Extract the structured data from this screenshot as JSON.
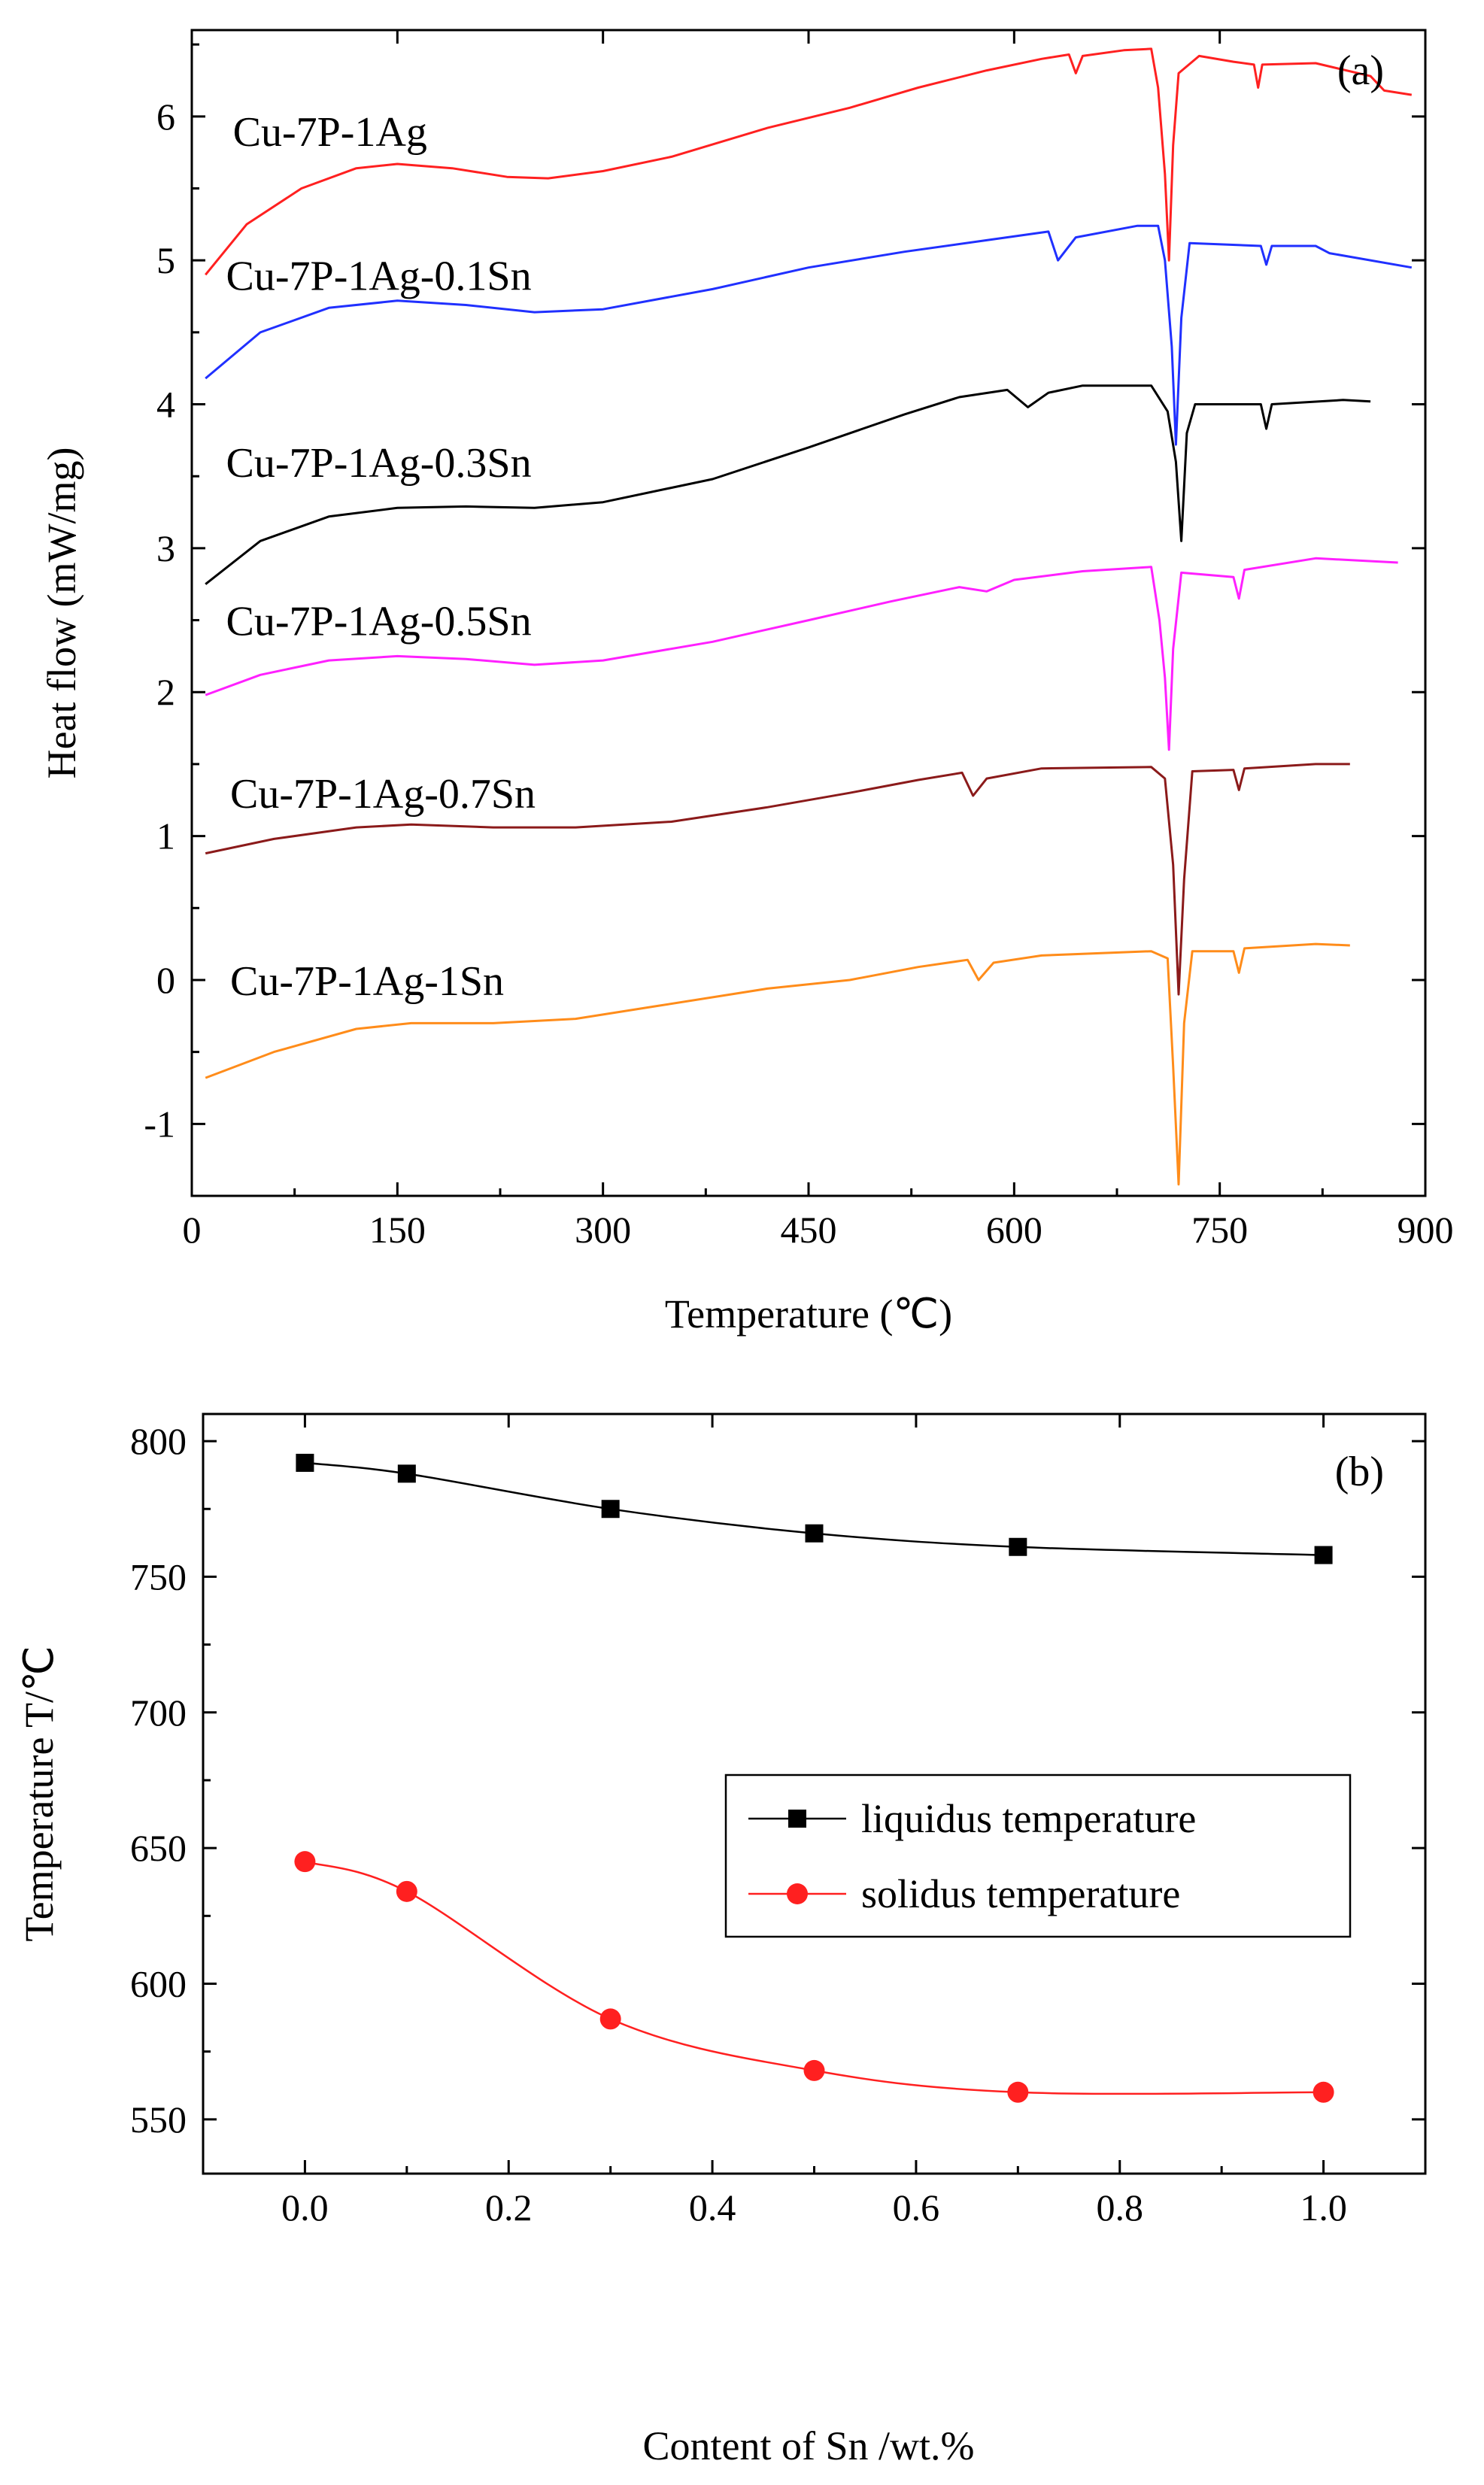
{
  "chart_data": [
    {
      "type": "line",
      "panel_label": "(a)",
      "xlabel": "Temperature (℃)",
      "ylabel": "Heat flow (mW/mg)",
      "xlim": [
        0,
        900
      ],
      "ylim": [
        -1.5,
        6.6
      ],
      "xticks": [
        0,
        150,
        300,
        450,
        600,
        750,
        900
      ],
      "yticks": [
        -1,
        0,
        1,
        2,
        3,
        4,
        5,
        6
      ],
      "legend": "none (inline curve labels)",
      "grid": false,
      "series": [
        {
          "name": "Cu-7P-1Ag",
          "color": "#ff2020",
          "label_anchor": [
            30,
            5.9
          ],
          "points": [
            [
              10,
              4.9
            ],
            [
              40,
              5.25
            ],
            [
              80,
              5.5
            ],
            [
              120,
              5.64
            ],
            [
              150,
              5.67
            ],
            [
              190,
              5.64
            ],
            [
              230,
              5.58
            ],
            [
              260,
              5.57
            ],
            [
              300,
              5.62
            ],
            [
              350,
              5.72
            ],
            [
              420,
              5.92
            ],
            [
              480,
              6.06
            ],
            [
              530,
              6.2
            ],
            [
              580,
              6.32
            ],
            [
              620,
              6.4
            ],
            [
              640,
              6.43
            ],
            [
              645,
              6.3
            ],
            [
              650,
              6.42
            ],
            [
              680,
              6.46
            ],
            [
              700,
              6.47
            ],
            [
              705,
              6.2
            ],
            [
              710,
              5.6
            ],
            [
              713,
              5.0
            ],
            [
              716,
              5.8
            ],
            [
              720,
              6.3
            ],
            [
              735,
              6.42
            ],
            [
              760,
              6.38
            ],
            [
              775,
              6.36
            ],
            [
              778,
              6.2
            ],
            [
              781,
              6.36
            ],
            [
              820,
              6.37
            ],
            [
              860,
              6.28
            ],
            [
              870,
              6.18
            ],
            [
              890,
              6.15
            ]
          ]
        },
        {
          "name": "Cu-7P-1Ag-0.1Sn",
          "color": "#2030ff",
          "label_anchor": [
            25,
            4.9
          ],
          "points": [
            [
              10,
              4.18
            ],
            [
              50,
              4.5
            ],
            [
              100,
              4.67
            ],
            [
              150,
              4.72
            ],
            [
              200,
              4.69
            ],
            [
              250,
              4.64
            ],
            [
              300,
              4.66
            ],
            [
              380,
              4.8
            ],
            [
              450,
              4.95
            ],
            [
              520,
              5.06
            ],
            [
              580,
              5.14
            ],
            [
              625,
              5.2
            ],
            [
              632,
              5.0
            ],
            [
              645,
              5.16
            ],
            [
              690,
              5.24
            ],
            [
              705,
              5.24
            ],
            [
              710,
              5.0
            ],
            [
              715,
              4.4
            ],
            [
              718,
              3.72
            ],
            [
              722,
              4.6
            ],
            [
              728,
              5.12
            ],
            [
              780,
              5.1
            ],
            [
              784,
              4.97
            ],
            [
              788,
              5.1
            ],
            [
              820,
              5.1
            ],
            [
              830,
              5.05
            ],
            [
              890,
              4.95
            ]
          ]
        },
        {
          "name": "Cu-7P-1Ag-0.3Sn",
          "color": "#000000",
          "label_anchor": [
            25,
            3.6
          ],
          "points": [
            [
              10,
              2.75
            ],
            [
              50,
              3.05
            ],
            [
              100,
              3.22
            ],
            [
              150,
              3.28
            ],
            [
              200,
              3.29
            ],
            [
              250,
              3.28
            ],
            [
              300,
              3.32
            ],
            [
              380,
              3.48
            ],
            [
              450,
              3.7
            ],
            [
              520,
              3.93
            ],
            [
              560,
              4.05
            ],
            [
              595,
              4.1
            ],
            [
              610,
              3.98
            ],
            [
              625,
              4.08
            ],
            [
              650,
              4.13
            ],
            [
              700,
              4.13
            ],
            [
              712,
              3.95
            ],
            [
              718,
              3.6
            ],
            [
              722,
              3.05
            ],
            [
              726,
              3.8
            ],
            [
              732,
              4.0
            ],
            [
              780,
              4.0
            ],
            [
              784,
              3.83
            ],
            [
              788,
              4.0
            ],
            [
              840,
              4.03
            ],
            [
              860,
              4.02
            ]
          ]
        },
        {
          "name": "Cu-7P-1Ag-0.5Sn",
          "color": "#ff20ff",
          "label_anchor": [
            25,
            2.5
          ],
          "points": [
            [
              10,
              1.98
            ],
            [
              50,
              2.12
            ],
            [
              100,
              2.22
            ],
            [
              150,
              2.25
            ],
            [
              200,
              2.23
            ],
            [
              250,
              2.19
            ],
            [
              300,
              2.22
            ],
            [
              380,
              2.35
            ],
            [
              450,
              2.5
            ],
            [
              510,
              2.63
            ],
            [
              560,
              2.73
            ],
            [
              580,
              2.7
            ],
            [
              600,
              2.78
            ],
            [
              650,
              2.84
            ],
            [
              700,
              2.87
            ],
            [
              706,
              2.5
            ],
            [
              710,
              2.1
            ],
            [
              713,
              1.6
            ],
            [
              716,
              2.3
            ],
            [
              722,
              2.83
            ],
            [
              760,
              2.8
            ],
            [
              764,
              2.65
            ],
            [
              768,
              2.85
            ],
            [
              820,
              2.93
            ],
            [
              880,
              2.9
            ]
          ]
        },
        {
          "name": "Cu-7P-1Ag-0.7Sn",
          "color": "#8b1a1a",
          "label_anchor": [
            28,
            1.3
          ],
          "points": [
            [
              10,
              0.88
            ],
            [
              60,
              0.98
            ],
            [
              120,
              1.06
            ],
            [
              160,
              1.08
            ],
            [
              220,
              1.06
            ],
            [
              280,
              1.06
            ],
            [
              350,
              1.1
            ],
            [
              420,
              1.2
            ],
            [
              480,
              1.3
            ],
            [
              530,
              1.39
            ],
            [
              562,
              1.44
            ],
            [
              570,
              1.28
            ],
            [
              580,
              1.4
            ],
            [
              620,
              1.47
            ],
            [
              700,
              1.48
            ],
            [
              710,
              1.4
            ],
            [
              716,
              0.8
            ],
            [
              720,
              -0.1
            ],
            [
              724,
              0.7
            ],
            [
              730,
              1.45
            ],
            [
              760,
              1.46
            ],
            [
              764,
              1.32
            ],
            [
              768,
              1.47
            ],
            [
              820,
              1.5
            ],
            [
              845,
              1.5
            ]
          ]
        },
        {
          "name": "Cu-7P-1Ag-1Sn",
          "color": "#ff8c1a",
          "label_anchor": [
            28,
            0.0
          ],
          "points": [
            [
              10,
              -0.68
            ],
            [
              60,
              -0.5
            ],
            [
              120,
              -0.34
            ],
            [
              160,
              -0.3
            ],
            [
              220,
              -0.3
            ],
            [
              280,
              -0.27
            ],
            [
              340,
              -0.18
            ],
            [
              420,
              -0.06
            ],
            [
              480,
              0.0
            ],
            [
              530,
              0.09
            ],
            [
              566,
              0.14
            ],
            [
              574,
              0.0
            ],
            [
              585,
              0.12
            ],
            [
              620,
              0.17
            ],
            [
              700,
              0.2
            ],
            [
              712,
              0.15
            ],
            [
              716,
              -0.6
            ],
            [
              720,
              -1.42
            ],
            [
              724,
              -0.3
            ],
            [
              730,
              0.2
            ],
            [
              760,
              0.2
            ],
            [
              764,
              0.05
            ],
            [
              768,
              0.22
            ],
            [
              820,
              0.25
            ],
            [
              845,
              0.24
            ]
          ]
        }
      ]
    },
    {
      "type": "scatter",
      "panel_label": "(b)",
      "xlabel": "Content of Sn /wt.%",
      "ylabel": "Temperature T/℃",
      "xlim": [
        -0.1,
        1.1
      ],
      "ylim": [
        530,
        810
      ],
      "xticks": [
        "0.0",
        "0.2",
        "0.4",
        "0.6",
        "0.8",
        "1.0"
      ],
      "yticks": [
        "550",
        "600",
        "650",
        "700",
        "750",
        "800"
      ],
      "legend": "center-right",
      "grid": false,
      "x": [
        0.0,
        0.1,
        0.3,
        0.5,
        0.7,
        1.0
      ],
      "series": [
        {
          "name": "liquidus temperature",
          "color": "#000000",
          "marker": "square",
          "values": [
            792,
            788,
            775,
            766,
            761,
            758
          ]
        },
        {
          "name": "solidus temperature",
          "color": "#ff2020",
          "marker": "circle",
          "values": [
            645,
            634,
            587,
            568,
            560,
            560
          ]
        }
      ]
    }
  ]
}
